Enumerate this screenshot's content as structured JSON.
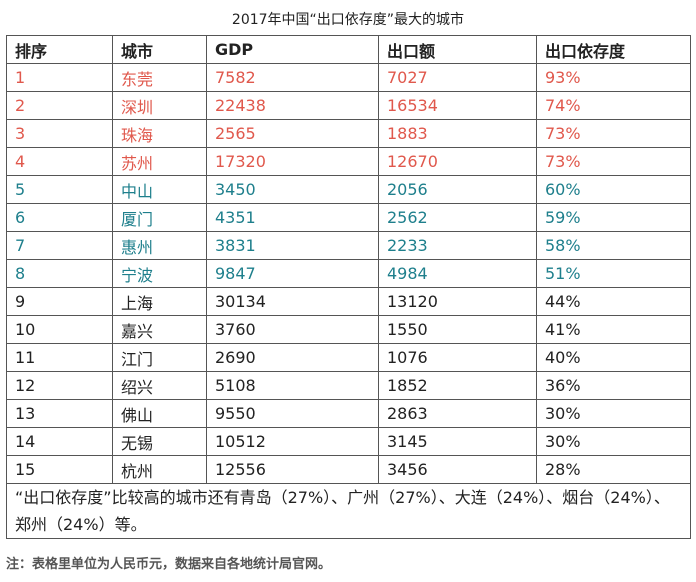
{
  "title": "2017年中国“出口依存度”最大的城市",
  "table": {
    "header": [
      "排序",
      "城市",
      "GDP",
      "出口额",
      "出口依存度"
    ],
    "rows": [
      {
        "cells": [
          1,
          "东莞",
          7582,
          7027,
          "93%"
        ],
        "color": "#e0584c"
      },
      {
        "cells": [
          2,
          "深圳",
          22438,
          16534,
          "74%"
        ],
        "color": "#e0584c"
      },
      {
        "cells": [
          3,
          "珠海",
          2565,
          1883,
          "73%"
        ],
        "color": "#e0584c"
      },
      {
        "cells": [
          4,
          "苏州",
          17320,
          12670,
          "73%"
        ],
        "color": "#e0584c"
      },
      {
        "cells": [
          5,
          "中山",
          3450,
          2056,
          "60%"
        ],
        "color": "#1e7f8c"
      },
      {
        "cells": [
          6,
          "厦门",
          4351,
          2562,
          "59%"
        ],
        "color": "#1e7f8c"
      },
      {
        "cells": [
          7,
          "惠州",
          3831,
          2233,
          "58%"
        ],
        "color": "#1e7f8c"
      },
      {
        "cells": [
          8,
          "宁波",
          9847,
          4984,
          "51%"
        ],
        "color": "#1e7f8c"
      },
      {
        "cells": [
          9,
          "上海",
          30134,
          13120,
          "44%"
        ],
        "color": "#222222"
      },
      {
        "cells": [
          10,
          "嘉兴",
          3760,
          1550,
          "41%"
        ],
        "color": "#222222"
      },
      {
        "cells": [
          11,
          "江门",
          2690,
          1076,
          "40%"
        ],
        "color": "#222222"
      },
      {
        "cells": [
          12,
          "绍兴",
          5108,
          1852,
          "36%"
        ],
        "color": "#222222"
      },
      {
        "cells": [
          13,
          "佛山",
          9550,
          2863,
          "30%"
        ],
        "color": "#222222"
      },
      {
        "cells": [
          14,
          "无锡",
          10512,
          3145,
          "30%"
        ],
        "color": "#222222"
      },
      {
        "cells": [
          15,
          "杭州",
          12556,
          3456,
          "28%"
        ],
        "color": "#222222"
      }
    ],
    "note": "“出口依存度”比较高的城市还有青岛（27%）、广州（27%）、大连（24%）、烟台（24%）、郑州（24%）等。"
  },
  "footnote": "注：表格里单位为人民币元，数据来自各地统计局官网。"
}
